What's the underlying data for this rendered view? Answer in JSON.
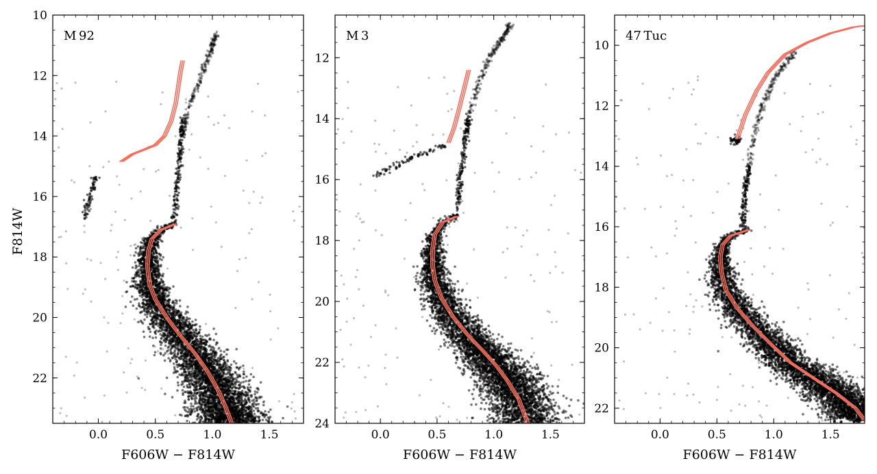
{
  "figure": {
    "shared_ylabel": "F814W",
    "shared_xlabel": "F606W − F814W"
  },
  "chart_data": [
    {
      "type": "scatter",
      "title": "M 92",
      "xlabel": "F606W − F814W",
      "ylabel": "F814W",
      "xlim": [
        -0.4,
        1.8
      ],
      "ylim": [
        23.5,
        10
      ],
      "y_inverted": true,
      "grid": false,
      "xticks": [
        0.0,
        0.5,
        1.0,
        1.5
      ],
      "xtick_labels": [
        "0.0",
        "0.5",
        "1.0",
        "1.5"
      ],
      "yticks": [
        10,
        12,
        14,
        16,
        18,
        20,
        22
      ],
      "ytick_labels": [
        "10",
        "12",
        "14",
        "16",
        "18",
        "20",
        "22"
      ],
      "point_color": "#000000",
      "isochrone_color": "#f07060",
      "isochrones": [
        {
          "x": [
            0.2,
            0.3,
            0.4,
            0.5,
            0.58,
            0.64,
            0.68,
            0.7,
            0.72,
            0.74,
            0.68,
            0.55,
            0.47,
            0.44,
            0.43,
            0.45,
            0.5,
            0.6,
            0.72,
            0.85,
            0.96,
            1.05,
            1.12,
            1.17
          ],
          "y": [
            14.85,
            14.6,
            14.45,
            14.3,
            14.0,
            13.5,
            12.9,
            12.4,
            11.9,
            11.5,
            16.9,
            17.1,
            17.4,
            17.8,
            18.3,
            18.9,
            19.4,
            20.0,
            20.6,
            21.2,
            21.8,
            22.4,
            23.0,
            23.5
          ]
        }
      ],
      "upper_rgb": {
        "x": [
          0.74,
          0.8,
          0.88,
          0.95,
          1.0,
          1.04
        ],
        "y": [
          13.9,
          13.0,
          12.2,
          11.5,
          11.0,
          10.6
        ]
      },
      "rgb": {
        "x": [
          0.66,
          0.69,
          0.71,
          0.73,
          0.74
        ],
        "y": [
          16.9,
          15.8,
          14.8,
          14.0,
          13.4
        ]
      },
      "horizontal_branch": {
        "x": [
          -0.12,
          -0.1,
          -0.08,
          -0.06,
          -0.04,
          -0.02
        ],
        "y": [
          16.7,
          16.4,
          16.1,
          15.8,
          15.55,
          15.3
        ]
      }
    },
    {
      "type": "scatter",
      "title": "M 3",
      "xlabel": "F606W − F814W",
      "ylabel": "",
      "xlim": [
        -0.4,
        1.8
      ],
      "ylim": [
        24,
        10.6
      ],
      "y_inverted": true,
      "grid": false,
      "xticks": [
        0.0,
        0.5,
        1.0,
        1.5
      ],
      "xtick_labels": [
        "0.0",
        "0.5",
        "1.0",
        "1.5"
      ],
      "yticks": [
        12,
        14,
        16,
        18,
        20,
        22,
        24
      ],
      "ytick_labels": [
        "12",
        "14",
        "16",
        "18",
        "20",
        "22",
        "24"
      ],
      "point_color": "#000000",
      "isochrone_color": "#f07060",
      "isochrones": [
        {
          "x": [
            0.6,
            0.65,
            0.7,
            0.74,
            0.78,
            0.68,
            0.55,
            0.48,
            0.46,
            0.46,
            0.48,
            0.54,
            0.64,
            0.77,
            0.9,
            1.02,
            1.12,
            1.22,
            1.3
          ],
          "y": [
            14.8,
            14.3,
            13.6,
            13.0,
            12.4,
            17.2,
            17.4,
            17.8,
            18.3,
            18.8,
            19.3,
            19.9,
            20.5,
            21.1,
            21.6,
            22.1,
            22.6,
            23.2,
            24.0
          ]
        }
      ],
      "upper_rgb": {
        "x": [
          0.78,
          0.86,
          0.95,
          1.03,
          1.1,
          1.15
        ],
        "y": [
          13.9,
          12.9,
          12.1,
          11.6,
          11.2,
          10.9
        ]
      },
      "rgb": {
        "x": [
          0.67,
          0.7,
          0.73,
          0.76,
          0.78
        ],
        "y": [
          17.2,
          16.2,
          15.2,
          14.4,
          13.9
        ]
      },
      "horizontal_branch": {
        "x": [
          -0.05,
          0.05,
          0.15,
          0.25,
          0.35,
          0.45,
          0.55
        ],
        "y": [
          15.9,
          15.7,
          15.5,
          15.35,
          15.2,
          15.05,
          14.9
        ]
      }
    },
    {
      "type": "scatter",
      "title": "47 Tuc",
      "xlabel": "F606W − F814W",
      "ylabel": "",
      "xlim": [
        -0.4,
        1.8
      ],
      "ylim": [
        22.5,
        9
      ],
      "y_inverted": true,
      "grid": false,
      "xticks": [
        0.0,
        0.5,
        1.0,
        1.5
      ],
      "xtick_labels": [
        "0.0",
        "0.5",
        "1.0",
        "1.5"
      ],
      "yticks": [
        10,
        12,
        14,
        16,
        18,
        20,
        22
      ],
      "ytick_labels": [
        "10",
        "12",
        "14",
        "16",
        "18",
        "20",
        "22"
      ],
      "point_color": "#000000",
      "isochrone_color": "#f07060",
      "isochrones": [
        {
          "x": [
            0.68,
            0.75,
            0.85,
            0.95,
            1.1,
            1.3,
            1.5,
            1.7,
            1.8,
            0.78,
            0.62,
            0.55,
            0.53,
            0.54,
            0.58,
            0.68,
            0.82,
            0.98,
            1.15,
            1.35,
            1.55,
            1.72,
            1.8
          ],
          "y": [
            13.1,
            12.3,
            11.5,
            10.9,
            10.3,
            9.9,
            9.6,
            9.4,
            9.35,
            16.1,
            16.3,
            16.6,
            17.0,
            17.5,
            18.1,
            18.7,
            19.3,
            19.9,
            20.5,
            21.0,
            21.5,
            22.0,
            22.4
          ]
        }
      ],
      "upper_rgb": {
        "x": [
          0.78,
          0.83,
          0.9,
          0.98,
          1.08,
          1.2
        ],
        "y": [
          14.0,
          12.9,
          12.0,
          11.3,
          10.7,
          10.2
        ]
      },
      "rgb": {
        "x": [
          0.72,
          0.74,
          0.76,
          0.78
        ],
        "y": [
          16.1,
          15.3,
          14.6,
          14.0
        ]
      },
      "horizontal_branch": {
        "x": [
          0.62,
          0.65,
          0.68,
          0.7
        ],
        "y": [
          13.2,
          13.1,
          13.2,
          13.1
        ]
      }
    }
  ]
}
